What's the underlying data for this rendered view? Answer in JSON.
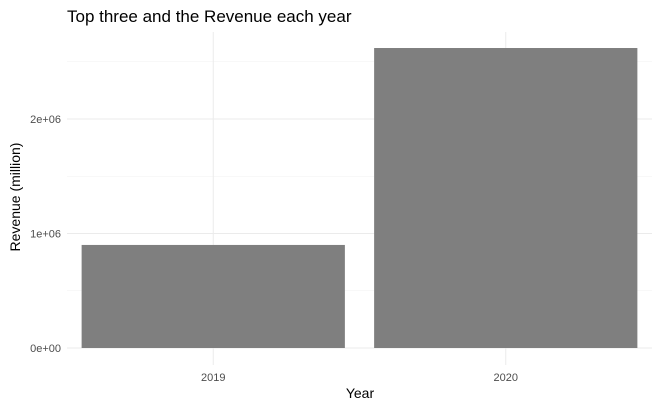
{
  "chart_data": {
    "type": "bar",
    "title": "Top three and the Revenue each year",
    "xlabel": "Year",
    "ylabel": "Revenue (million)",
    "categories": [
      "2019",
      "2020"
    ],
    "values": [
      900000,
      2620000
    ],
    "ylim": [
      0,
      2750000
    ],
    "yticks": [
      {
        "value": 0,
        "label": "0e+00"
      },
      {
        "value": 1000000,
        "label": "1e+06"
      },
      {
        "value": 2000000,
        "label": "2e+06"
      }
    ],
    "bar_color": "#7f7f7f",
    "grid": true,
    "legend": "none"
  }
}
